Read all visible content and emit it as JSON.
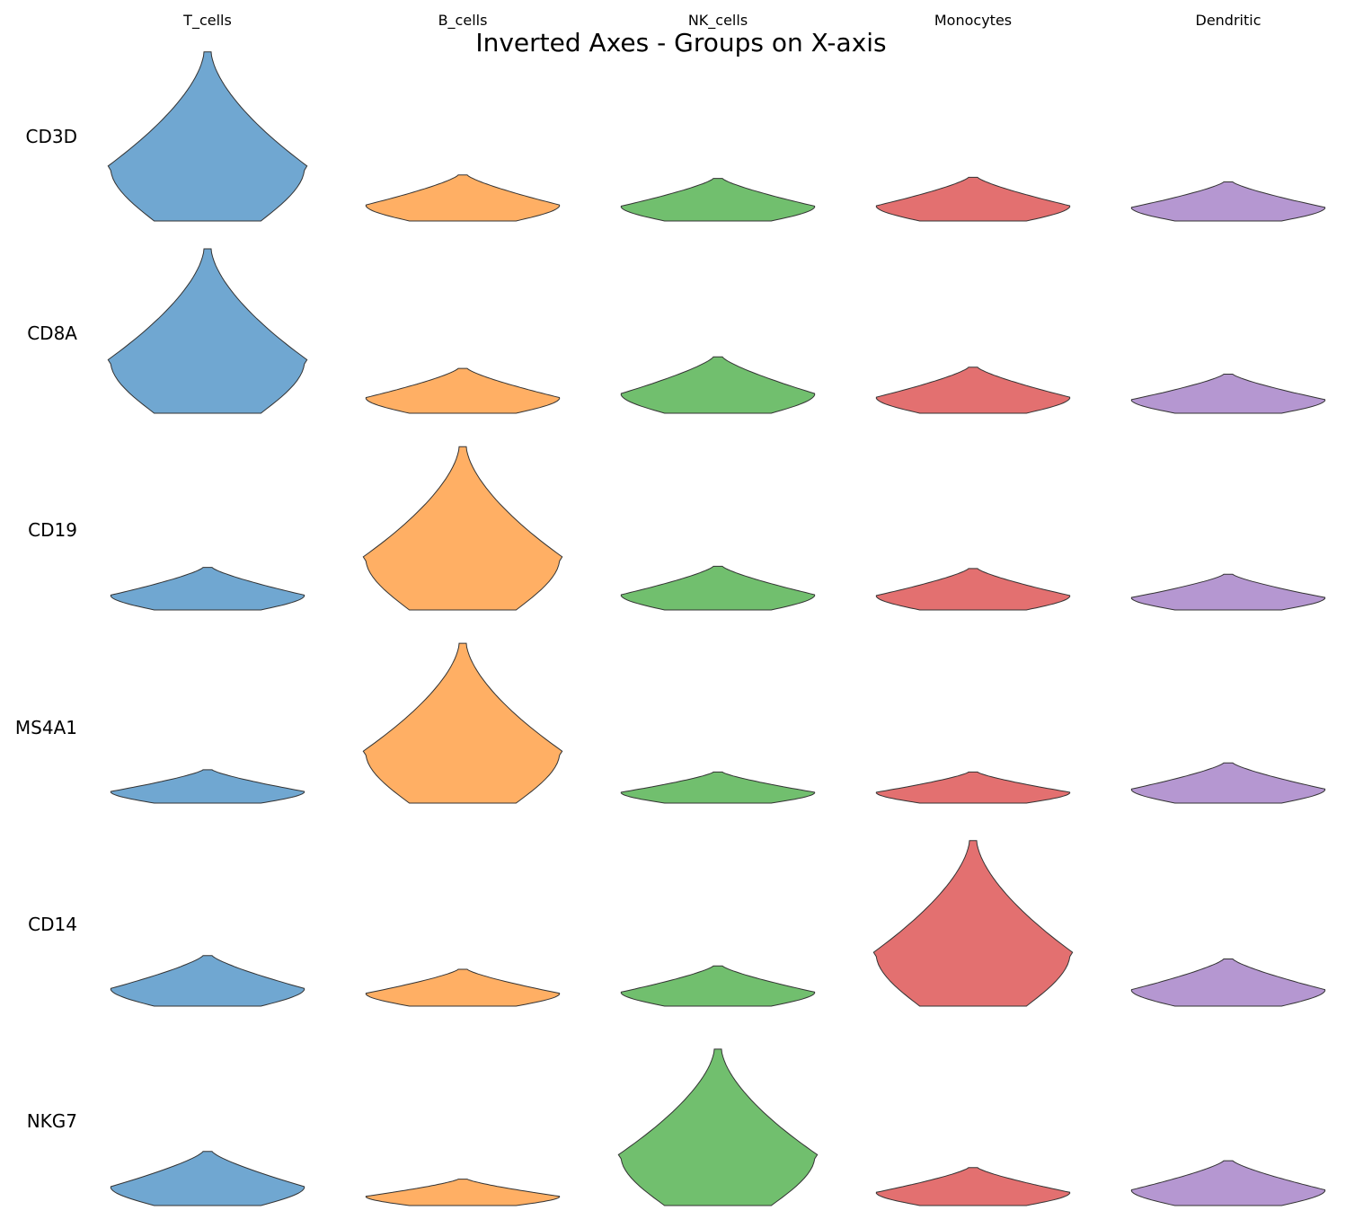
{
  "chart_data": {
    "type": "violin",
    "title": "Inverted Axes - Groups on X-axis",
    "groups": [
      "T_cells",
      "B_cells",
      "NK_cells",
      "Monocytes",
      "Dendritic"
    ],
    "genes": [
      "CD3D",
      "CD8A",
      "CD19",
      "MS4A1",
      "CD14",
      "NKG7"
    ],
    "colors": {
      "T_cells": "#4c91c5",
      "B_cells": "#ff9b3d",
      "NK_cells": "#4daf4a",
      "Monocytes": "#dc4c4c",
      "Dendritic": "#a27dc5"
    },
    "value_ranges": [
      [
        [
          0.0,
          1.47
        ],
        [
          0.0,
          0.4
        ],
        [
          0.0,
          0.37
        ],
        [
          0.0,
          0.38
        ],
        [
          0.0,
          0.34
        ]
      ],
      [
        [
          0.0,
          1.43
        ],
        [
          0.0,
          0.39
        ],
        [
          0.0,
          0.49
        ],
        [
          0.0,
          0.4
        ],
        [
          0.0,
          0.34
        ]
      ],
      [
        [
          0.0,
          0.37
        ],
        [
          0.0,
          1.42
        ],
        [
          0.0,
          0.38
        ],
        [
          0.0,
          0.36
        ],
        [
          0.0,
          0.31
        ]
      ],
      [
        [
          0.0,
          0.29
        ],
        [
          0.0,
          1.39
        ],
        [
          0.0,
          0.27
        ],
        [
          0.0,
          0.27
        ],
        [
          0.0,
          0.35
        ]
      ],
      [
        [
          0.0,
          0.44
        ],
        [
          0.0,
          0.32
        ],
        [
          0.0,
          0.35
        ],
        [
          0.0,
          1.44
        ],
        [
          0.0,
          0.41
        ]
      ],
      [
        [
          0.0,
          0.47
        ],
        [
          0.0,
          0.23
        ],
        [
          0.0,
          1.36
        ],
        [
          0.0,
          0.33
        ],
        [
          0.0,
          0.39
        ]
      ]
    ],
    "grid": false,
    "legend": "none"
  }
}
